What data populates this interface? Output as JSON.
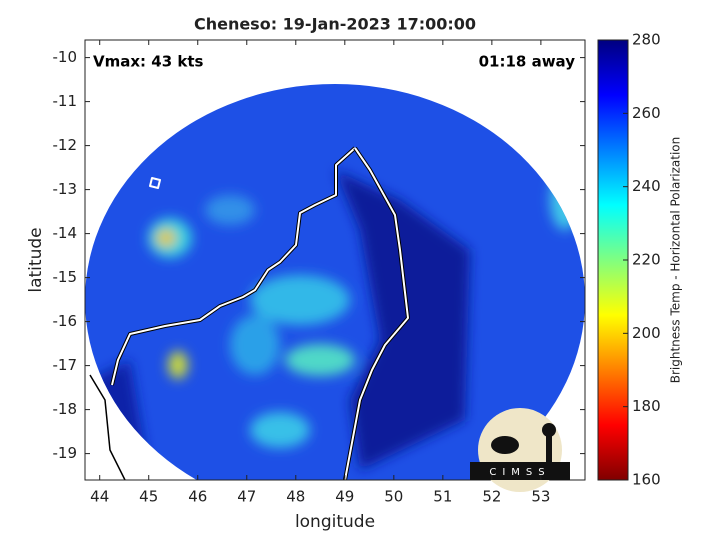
{
  "chart_data": {
    "type": "map",
    "title": "Cheneso: 19-Jan-2023 17:00:00",
    "annotations": [
      "Vmax: 43 kts",
      "01:18 away"
    ],
    "x_label": "longitude",
    "y_label": "latitude",
    "xlim": [
      43.7,
      53.9
    ],
    "ylim": [
      -19.6,
      -9.6
    ],
    "xticks": [
      44,
      45,
      46,
      47,
      48,
      49,
      50,
      51,
      52,
      53
    ],
    "yticks": [
      -10,
      -11,
      -12,
      -13,
      -14,
      -15,
      -16,
      -17,
      -18,
      -19
    ],
    "colorbar": {
      "label": "Brightness Temp - Horizontal Polarization",
      "lim": [
        160,
        280
      ],
      "ticks": [
        160,
        180,
        200,
        220,
        240,
        260,
        280
      ],
      "colormap": "jet"
    }
  },
  "logo": "CIMSS"
}
